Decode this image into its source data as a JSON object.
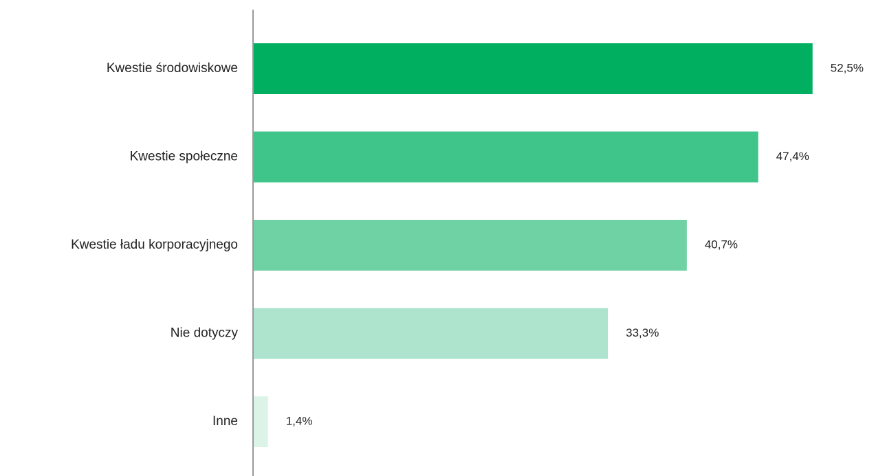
{
  "chart_data": {
    "type": "bar",
    "orientation": "horizontal",
    "categories": [
      "Kwestie środowiskowe",
      "Kwestie społeczne",
      "Kwestie ładu korporacyjnego",
      "Nie dotyczy",
      "Inne"
    ],
    "values": [
      52.5,
      47.4,
      40.7,
      33.3,
      1.4
    ],
    "value_labels": [
      "52,5%",
      "47,4%",
      "40,7%",
      "33,3%",
      "1,4%"
    ],
    "unit": "%",
    "xlim": [
      0,
      60
    ],
    "grid": false,
    "legend": "none",
    "title": "",
    "xlabel": "",
    "ylabel": "",
    "colors": [
      "#00b060",
      "#3fc489",
      "#6fd2a5",
      "#aee4cd",
      "#dcf3e8"
    ],
    "axis_color": "#999999"
  }
}
